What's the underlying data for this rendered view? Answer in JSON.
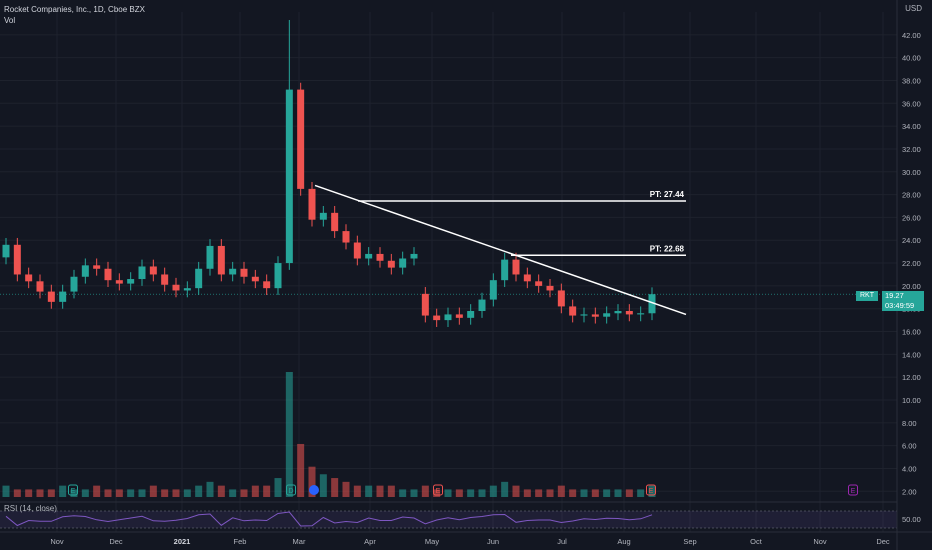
{
  "header": {
    "title": "Rocket Companies, Inc., 1D, Cboe BZX",
    "vol_label": "Vol"
  },
  "currency": "USD",
  "rsi_label": "RSI (14, close)",
  "price_tag": {
    "symbol": "RKT",
    "price": "19.27",
    "countdown": "03:49:59"
  },
  "colors": {
    "background": "#131722",
    "up": "#26a69a",
    "down": "#ef5350",
    "rsi_line": "#7e57c2",
    "annotation": "#ffffff"
  },
  "chart_data": {
    "type": "candlestick",
    "price_axis": {
      "ticks": [
        "42.00",
        "40.00",
        "38.00",
        "36.00",
        "34.00",
        "32.00",
        "30.00",
        "28.00",
        "26.00",
        "24.00",
        "22.00",
        "20.00",
        "18.00",
        "16.00",
        "14.00",
        "12.00",
        "10.00",
        "8.00",
        "6.00",
        "4.00",
        "2.00"
      ],
      "range": [
        1.5,
        44
      ]
    },
    "rsi_axis": {
      "ticks": [
        "50.00"
      ]
    },
    "time_axis": {
      "labels": [
        "Nov",
        "Dec",
        "2021",
        "Feb",
        "Mar",
        "Apr",
        "May",
        "Jun",
        "Jul",
        "Aug",
        "Sep",
        "Oct",
        "Nov",
        "Dec"
      ]
    },
    "price_series": [
      {
        "t": "Oct",
        "o": 22.5,
        "c": 23.6
      },
      {
        "t": "Oct",
        "o": 23.6,
        "c": 21.0
      },
      {
        "t": "Oct",
        "o": 21.0,
        "c": 20.4
      },
      {
        "t": "Nov",
        "o": 20.4,
        "c": 19.5
      },
      {
        "t": "Nov",
        "o": 19.5,
        "c": 18.6
      },
      {
        "t": "Nov",
        "o": 18.6,
        "c": 19.5
      },
      {
        "t": "Nov",
        "o": 19.5,
        "c": 20.8
      },
      {
        "t": "Nov",
        "o": 20.8,
        "c": 21.8
      },
      {
        "t": "Nov",
        "o": 21.8,
        "c": 21.5
      },
      {
        "t": "Dec",
        "o": 21.5,
        "c": 20.5
      },
      {
        "t": "Dec",
        "o": 20.5,
        "c": 20.2
      },
      {
        "t": "Dec",
        "o": 20.2,
        "c": 20.6
      },
      {
        "t": "Dec",
        "o": 20.6,
        "c": 21.7
      },
      {
        "t": "Dec",
        "o": 21.7,
        "c": 21.0
      },
      {
        "t": "Dec",
        "o": 21.0,
        "c": 20.1
      },
      {
        "t": "2021",
        "o": 20.1,
        "c": 19.6
      },
      {
        "t": "2021",
        "o": 19.6,
        "c": 19.8
      },
      {
        "t": "2021",
        "o": 19.8,
        "c": 21.5
      },
      {
        "t": "2021",
        "o": 21.5,
        "c": 23.5
      },
      {
        "t": "Feb",
        "o": 23.5,
        "c": 21.0
      },
      {
        "t": "Feb",
        "o": 21.0,
        "c": 21.5
      },
      {
        "t": "Feb",
        "o": 21.5,
        "c": 20.8
      },
      {
        "t": "Feb",
        "o": 20.8,
        "c": 20.4
      },
      {
        "t": "Feb",
        "o": 20.4,
        "c": 19.8
      },
      {
        "t": "Mar",
        "o": 19.8,
        "c": 22.0
      },
      {
        "t": "Mar",
        "o": 22.0,
        "c": 37.2
      },
      {
        "t": "Mar",
        "o": 37.2,
        "c": 28.5
      },
      {
        "t": "Mar",
        "o": 28.5,
        "c": 25.8
      },
      {
        "t": "Mar",
        "o": 25.8,
        "c": 26.4
      },
      {
        "t": "Mar",
        "o": 26.4,
        "c": 24.8
      },
      {
        "t": "Apr",
        "o": 24.8,
        "c": 23.8
      },
      {
        "t": "Apr",
        "o": 23.8,
        "c": 22.4
      },
      {
        "t": "Apr",
        "o": 22.4,
        "c": 22.8
      },
      {
        "t": "Apr",
        "o": 22.8,
        "c": 22.2
      },
      {
        "t": "Apr",
        "o": 22.2,
        "c": 21.6
      },
      {
        "t": "Apr",
        "o": 21.6,
        "c": 22.4
      },
      {
        "t": "Apr",
        "o": 22.4,
        "c": 22.8
      },
      {
        "t": "May",
        "o": 19.3,
        "c": 17.4
      },
      {
        "t": "May",
        "o": 17.4,
        "c": 17.0
      },
      {
        "t": "May",
        "o": 17.0,
        "c": 17.5
      },
      {
        "t": "May",
        "o": 17.5,
        "c": 17.2
      },
      {
        "t": "May",
        "o": 17.2,
        "c": 17.8
      },
      {
        "t": "May",
        "o": 17.8,
        "c": 18.8
      },
      {
        "t": "Jun",
        "o": 18.8,
        "c": 20.5
      },
      {
        "t": "Jun",
        "o": 20.5,
        "c": 22.3
      },
      {
        "t": "Jun",
        "o": 22.3,
        "c": 21.0
      },
      {
        "t": "Jun",
        "o": 21.0,
        "c": 20.4
      },
      {
        "t": "Jun",
        "o": 20.4,
        "c": 20.0
      },
      {
        "t": "Jun",
        "o": 20.0,
        "c": 19.6
      },
      {
        "t": "Jul",
        "o": 19.6,
        "c": 18.2
      },
      {
        "t": "Jul",
        "o": 18.2,
        "c": 17.4
      },
      {
        "t": "Jul",
        "o": 17.4,
        "c": 17.5
      },
      {
        "t": "Jul",
        "o": 17.5,
        "c": 17.3
      },
      {
        "t": "Jul",
        "o": 17.3,
        "c": 17.6
      },
      {
        "t": "Aug",
        "o": 17.6,
        "c": 17.8
      },
      {
        "t": "Aug",
        "o": 17.8,
        "c": 17.5
      },
      {
        "t": "Aug",
        "o": 17.5,
        "c": 17.6
      },
      {
        "t": "Aug",
        "o": 17.6,
        "c": 19.27
      }
    ],
    "volume_values": [
      3,
      2,
      2,
      2,
      2,
      3,
      2,
      2,
      3,
      2,
      2,
      2,
      2,
      3,
      2,
      2,
      2,
      3,
      4,
      3,
      2,
      2,
      3,
      3,
      5,
      33,
      14,
      8,
      6,
      5,
      4,
      3,
      3,
      3,
      3,
      2,
      2,
      3,
      2,
      2,
      2,
      2,
      2,
      3,
      4,
      3,
      2,
      2,
      2,
      3,
      2,
      2,
      2,
      2,
      2,
      2,
      2,
      3
    ],
    "trendline": {
      "from": {
        "t": "Mar",
        "y": 28.8
      },
      "to": {
        "t": "Sep",
        "y": 17.5
      }
    },
    "targets": [
      {
        "label": "PT: 27.44",
        "value": 27.44
      },
      {
        "label": "PT: 22.68",
        "value": 22.68
      }
    ],
    "event_markers": [
      "E",
      "D",
      "E",
      "E",
      "E"
    ]
  }
}
